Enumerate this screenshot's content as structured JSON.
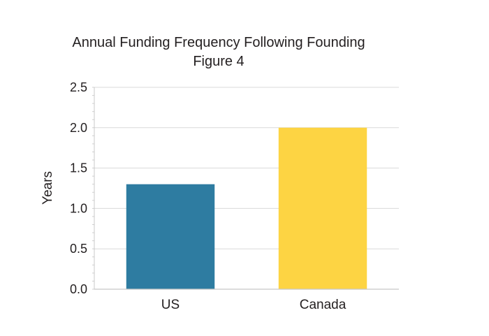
{
  "chart_data": {
    "type": "bar",
    "title": "Annual Funding Frequency Following Founding",
    "subtitle": "Figure 4",
    "xlabel": "",
    "ylabel": "Years",
    "categories": [
      "US",
      "Canada"
    ],
    "values": [
      1.3,
      2.0
    ],
    "ylim": [
      0,
      2.5
    ],
    "yticks": [
      "0.0",
      "0.5",
      "1.0",
      "1.5",
      "2.0",
      "2.5"
    ],
    "colors": [
      "#2e7ca1",
      "#fdd443"
    ],
    "grid": true,
    "legend": "none"
  }
}
